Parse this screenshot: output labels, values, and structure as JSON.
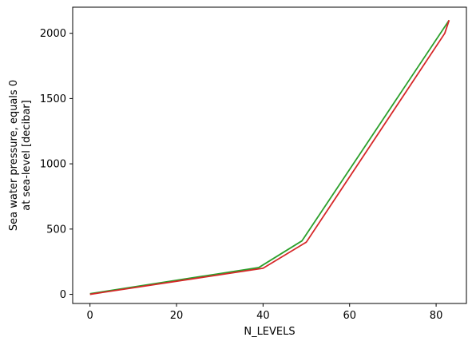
{
  "chart_data": {
    "type": "line",
    "title": "",
    "xlabel": "N_LEVELS",
    "ylabel_lines": [
      "Sea water pressure, equals 0",
      "at sea-level [decibar]"
    ],
    "xlim": [
      -4,
      87
    ],
    "ylim": [
      -70,
      2200
    ],
    "xticks": [
      0,
      20,
      40,
      60,
      80
    ],
    "yticks": [
      0,
      500,
      1000,
      1500,
      2000
    ],
    "grid": false,
    "legend": "none",
    "series": [
      {
        "color": "#2ca02c",
        "x": [
          0,
          39,
          49,
          83
        ],
        "y": [
          5,
          205,
          410,
          2100
        ]
      },
      {
        "color": "#d62728",
        "x": [
          0,
          40,
          50,
          82,
          83
        ],
        "y": [
          0,
          200,
          400,
          2000,
          2100
        ]
      }
    ]
  }
}
